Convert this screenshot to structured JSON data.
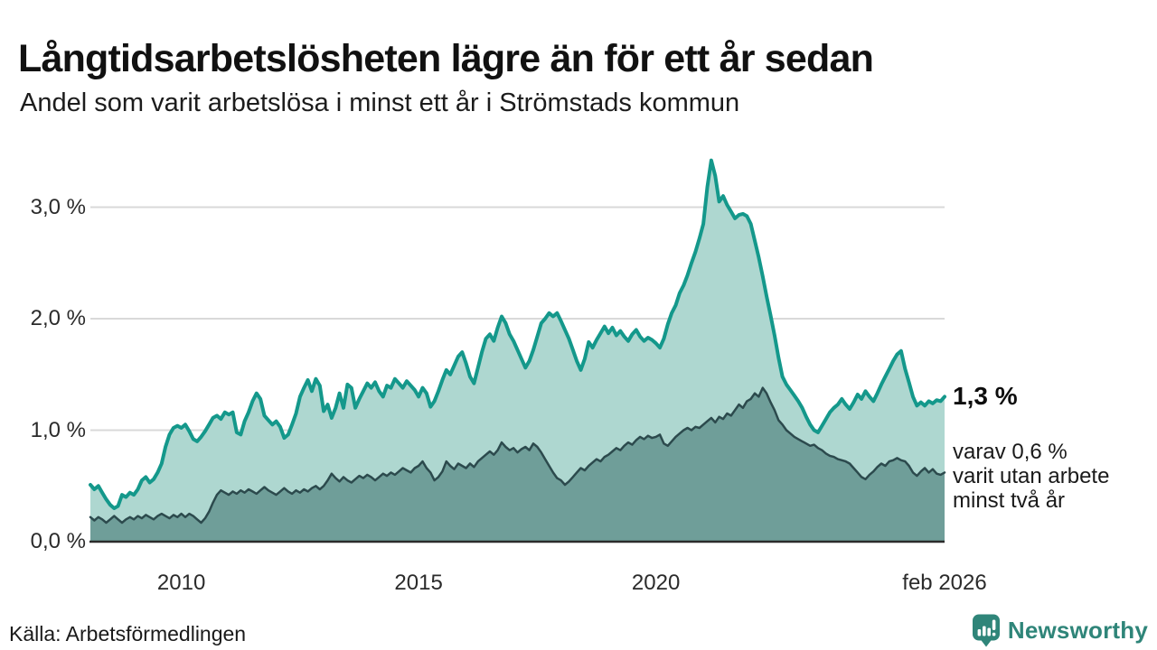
{
  "header": {
    "title": "Långtidsarbetslösheten lägre än för ett år sedan",
    "subtitle": "Andel som varit arbetslösa i minst ett år i Strömstads kommun"
  },
  "footer": {
    "source": "Källa: Arbetsförmedlingen",
    "brand_name": "Newsworthy"
  },
  "annotations": {
    "end_value": "1,3 %",
    "end_note": "varav 0,6 %\nvarit utan arbete\nminst två år"
  },
  "colors": {
    "series1_line": "#14988b",
    "series1_fill": "#aed7d0",
    "series2_line": "#2c4a4d",
    "series2_fill": "#6f9e99",
    "gridline": "#d9d9d9",
    "axis_line": "#2b2b2b",
    "brand_teal": "#2f8579"
  },
  "chart_data": {
    "type": "area",
    "title": "Långtidsarbetslösheten lägre än för ett år sedan",
    "subtitle": "Andel som varit arbetslösa i minst ett år i Strömstads kommun",
    "unit": "%",
    "frequency": "monthly",
    "x_start": "2008-02",
    "x_end": "2026-02",
    "ylim": [
      0,
      3.5
    ],
    "grid": "horizontal",
    "legend_position": "none",
    "gridlines": [
      1.0,
      2.0,
      3.0
    ],
    "yticks": [
      {
        "label": "0,0 %",
        "value": 0
      },
      {
        "label": "1,0 %",
        "value": 1
      },
      {
        "label": "2,0 %",
        "value": 2
      },
      {
        "label": "3,0 %",
        "value": 3
      }
    ],
    "xticks": [
      {
        "label": "2010",
        "month_index": 23
      },
      {
        "label": "2015",
        "month_index": 83
      },
      {
        "label": "2020",
        "month_index": 143
      },
      {
        "label": "feb 2026",
        "month_index": 216
      }
    ],
    "series": [
      {
        "name": "Arbetslösa minst ett år",
        "end_value_label": "1,3 %",
        "values": [
          0.51,
          0.47,
          0.5,
          0.44,
          0.38,
          0.33,
          0.3,
          0.32,
          0.42,
          0.4,
          0.44,
          0.42,
          0.47,
          0.55,
          0.58,
          0.53,
          0.56,
          0.62,
          0.7,
          0.85,
          0.96,
          1.02,
          1.04,
          1.02,
          1.05,
          0.99,
          0.92,
          0.9,
          0.94,
          0.99,
          1.05,
          1.11,
          1.13,
          1.1,
          1.16,
          1.14,
          1.16,
          0.98,
          0.96,
          1.08,
          1.16,
          1.26,
          1.33,
          1.28,
          1.13,
          1.09,
          1.05,
          1.08,
          1.03,
          0.93,
          0.96,
          1.05,
          1.15,
          1.3,
          1.38,
          1.45,
          1.35,
          1.46,
          1.4,
          1.17,
          1.23,
          1.11,
          1.2,
          1.33,
          1.2,
          1.41,
          1.38,
          1.2,
          1.28,
          1.35,
          1.42,
          1.38,
          1.43,
          1.35,
          1.3,
          1.4,
          1.38,
          1.46,
          1.42,
          1.38,
          1.44,
          1.4,
          1.36,
          1.3,
          1.38,
          1.33,
          1.21,
          1.26,
          1.35,
          1.45,
          1.54,
          1.5,
          1.58,
          1.66,
          1.7,
          1.6,
          1.48,
          1.42,
          1.56,
          1.7,
          1.82,
          1.86,
          1.8,
          1.92,
          2.02,
          1.96,
          1.86,
          1.8,
          1.72,
          1.64,
          1.56,
          1.62,
          1.72,
          1.84,
          1.96,
          2.0,
          2.05,
          2.02,
          2.05,
          1.98,
          1.9,
          1.82,
          1.72,
          1.62,
          1.54,
          1.64,
          1.79,
          1.74,
          1.81,
          1.87,
          1.93,
          1.87,
          1.92,
          1.85,
          1.89,
          1.84,
          1.8,
          1.86,
          1.9,
          1.84,
          1.8,
          1.83,
          1.81,
          1.78,
          1.74,
          1.82,
          1.95,
          2.05,
          2.12,
          2.23,
          2.3,
          2.39,
          2.5,
          2.6,
          2.72,
          2.85,
          3.18,
          3.42,
          3.28,
          3.05,
          3.1,
          3.02,
          2.96,
          2.9,
          2.93,
          2.94,
          2.92,
          2.85,
          2.7,
          2.55,
          2.38,
          2.2,
          2.03,
          1.85,
          1.65,
          1.48,
          1.41,
          1.36,
          1.31,
          1.26,
          1.2,
          1.12,
          1.05,
          1.0,
          0.98,
          1.04,
          1.1,
          1.16,
          1.2,
          1.23,
          1.28,
          1.23,
          1.19,
          1.25,
          1.32,
          1.28,
          1.35,
          1.3,
          1.26,
          1.33,
          1.41,
          1.48,
          1.55,
          1.62,
          1.68,
          1.71,
          1.55,
          1.43,
          1.3,
          1.22,
          1.25,
          1.22,
          1.26,
          1.24,
          1.27,
          1.26,
          1.3
        ]
      },
      {
        "name": "Arbetslösa minst två år",
        "end_value_label": "0,6 %",
        "values": [
          0.22,
          0.19,
          0.22,
          0.2,
          0.17,
          0.2,
          0.23,
          0.2,
          0.17,
          0.2,
          0.22,
          0.2,
          0.23,
          0.21,
          0.24,
          0.22,
          0.2,
          0.23,
          0.25,
          0.23,
          0.21,
          0.24,
          0.22,
          0.25,
          0.22,
          0.25,
          0.23,
          0.2,
          0.17,
          0.21,
          0.27,
          0.35,
          0.42,
          0.46,
          0.44,
          0.42,
          0.45,
          0.43,
          0.46,
          0.44,
          0.47,
          0.45,
          0.43,
          0.46,
          0.49,
          0.46,
          0.44,
          0.42,
          0.45,
          0.48,
          0.45,
          0.43,
          0.46,
          0.44,
          0.47,
          0.45,
          0.48,
          0.5,
          0.47,
          0.5,
          0.55,
          0.61,
          0.57,
          0.54,
          0.58,
          0.55,
          0.53,
          0.56,
          0.59,
          0.57,
          0.6,
          0.58,
          0.55,
          0.58,
          0.61,
          0.59,
          0.62,
          0.6,
          0.63,
          0.66,
          0.64,
          0.62,
          0.66,
          0.68,
          0.72,
          0.66,
          0.62,
          0.55,
          0.58,
          0.63,
          0.72,
          0.68,
          0.65,
          0.7,
          0.68,
          0.66,
          0.7,
          0.67,
          0.72,
          0.75,
          0.78,
          0.81,
          0.78,
          0.82,
          0.89,
          0.85,
          0.82,
          0.84,
          0.8,
          0.83,
          0.85,
          0.82,
          0.88,
          0.85,
          0.8,
          0.74,
          0.68,
          0.62,
          0.57,
          0.55,
          0.51,
          0.54,
          0.58,
          0.62,
          0.66,
          0.64,
          0.68,
          0.71,
          0.74,
          0.72,
          0.76,
          0.78,
          0.81,
          0.84,
          0.82,
          0.86,
          0.89,
          0.87,
          0.91,
          0.94,
          0.92,
          0.95,
          0.93,
          0.94,
          0.96,
          0.88,
          0.86,
          0.9,
          0.94,
          0.97,
          1.0,
          1.02,
          1.0,
          1.03,
          1.02,
          1.05,
          1.08,
          1.11,
          1.07,
          1.12,
          1.1,
          1.15,
          1.13,
          1.18,
          1.23,
          1.2,
          1.26,
          1.28,
          1.33,
          1.3,
          1.38,
          1.33,
          1.25,
          1.18,
          1.09,
          1.05,
          1.0,
          0.97,
          0.94,
          0.92,
          0.9,
          0.88,
          0.86,
          0.87,
          0.84,
          0.82,
          0.79,
          0.77,
          0.76,
          0.74,
          0.73,
          0.72,
          0.7,
          0.66,
          0.62,
          0.58,
          0.56,
          0.6,
          0.63,
          0.67,
          0.7,
          0.68,
          0.72,
          0.73,
          0.75,
          0.73,
          0.72,
          0.68,
          0.62,
          0.59,
          0.63,
          0.66,
          0.62,
          0.65,
          0.61,
          0.6,
          0.62
        ]
      }
    ]
  }
}
